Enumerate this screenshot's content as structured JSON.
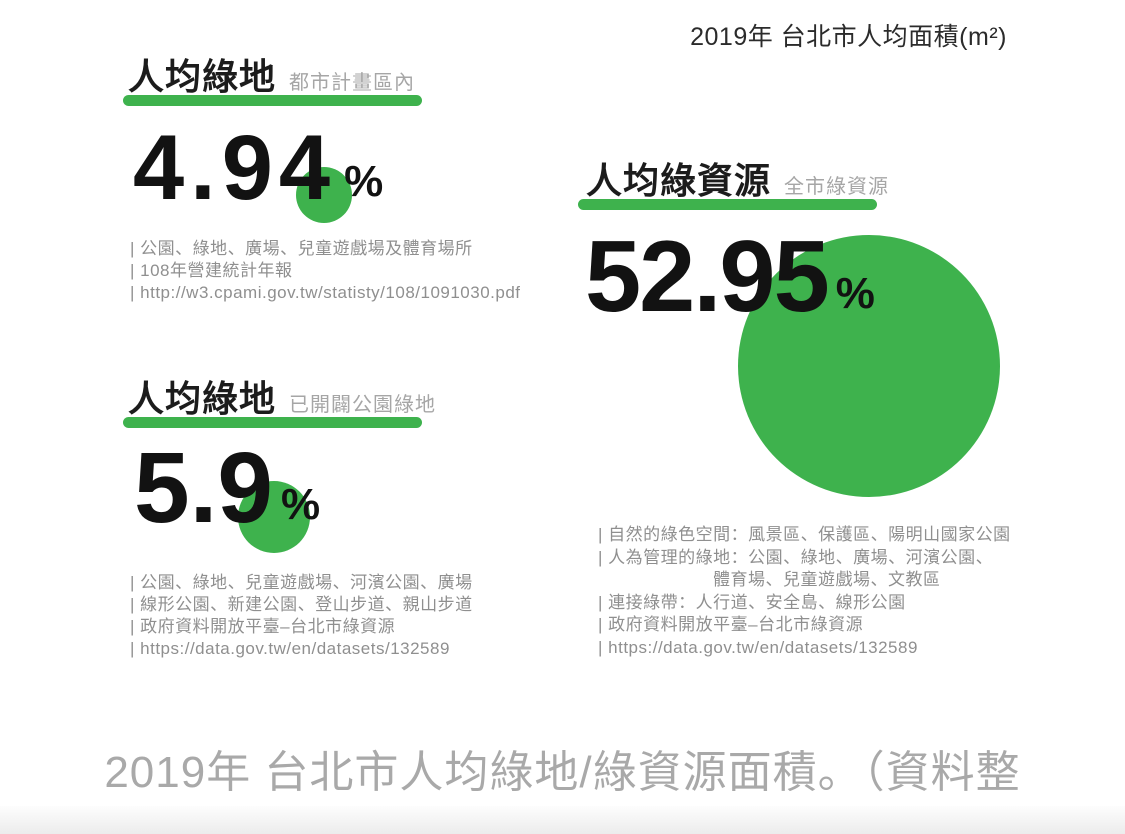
{
  "header": {
    "title": "2019年 台北市人均面積(m²)"
  },
  "cards": [
    {
      "title": "人均綠地",
      "subtitle": "都市計畫區內",
      "value": "4.94",
      "unit": "%",
      "sources": [
        "| 公園、綠地、廣場、兒童遊戲場及體育場所",
        "| 108年營建統計年報",
        "| http://w3.cpami.gov.tw/statisty/108/1091030.pdf"
      ]
    },
    {
      "title": "人均綠地",
      "subtitle": "已開闢公園綠地",
      "value": "5.9",
      "unit": "%",
      "sources": [
        "| 公園、綠地、兒童遊戲場、河濱公園、廣場",
        "| 線形公園、新建公園、登山步道、親山步道",
        "| 政府資料開放平臺–台北市綠資源",
        "| https://data.gov.tw/en/datasets/132589"
      ]
    },
    {
      "title": "人均綠資源",
      "subtitle": "全市綠資源",
      "value": "52.95",
      "unit": "%",
      "sources": [
        "| 自然的綠色空間：風景區、保護區、陽明山國家公園",
        "| 人為管理的綠地：公園、綠地、廣場、河濱公園、",
        "體育場、兒童遊戲場、文教區",
        "| 連接綠帶：人行道、安全島、線形公園",
        "| 政府資料開放平臺–台北市綠資源",
        "| https://data.gov.tw/en/datasets/132589"
      ]
    }
  ],
  "caption": "2019年 台北市人均綠地/綠資源面積。（資料整",
  "colors": {
    "green": "#3EB24D",
    "number-black": "#121212",
    "title-black": "#1c1c1c",
    "subtitle-gray": "#a6a6a6",
    "source-gray": "#8f8f8f",
    "caption-gray": "#a9a9a9",
    "header-black": "#2b2b2b",
    "band-gray": "#ececec"
  },
  "chart_data": {
    "type": "scatter",
    "representation": "proportional-circles",
    "title": "2019年 台北市人均面積(m²)",
    "unit": "%",
    "categories": [
      "人均綠地（都市計畫區內）",
      "人均綠地（已開闢公園綠地）",
      "人均綠資源（全市綠資源）"
    ],
    "values": [
      4.94,
      5.9,
      52.95
    ],
    "legend_position": "none",
    "grid": false
  }
}
